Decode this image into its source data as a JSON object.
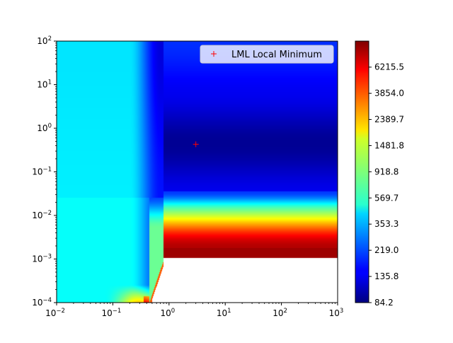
{
  "chart_data": {
    "type": "heatmap",
    "title": "",
    "xlabel": "",
    "ylabel": "",
    "x_scale": "log",
    "y_scale": "log",
    "xlim": [
      0.01,
      1000
    ],
    "ylim": [
      0.0001,
      100
    ],
    "x_ticks": [
      {
        "value": 0.01,
        "base": "10",
        "exp": "−2"
      },
      {
        "value": 0.1,
        "base": "10",
        "exp": "−1"
      },
      {
        "value": 1,
        "base": "10",
        "exp": "0"
      },
      {
        "value": 10,
        "base": "10",
        "exp": "1"
      },
      {
        "value": 100,
        "base": "10",
        "exp": "2"
      },
      {
        "value": 1000,
        "base": "10",
        "exp": "3"
      }
    ],
    "y_ticks": [
      {
        "value": 0.0001,
        "base": "10",
        "exp": "−4"
      },
      {
        "value": 0.001,
        "base": "10",
        "exp": "−3"
      },
      {
        "value": 0.01,
        "base": "10",
        "exp": "−2"
      },
      {
        "value": 0.1,
        "base": "10",
        "exp": "−1"
      },
      {
        "value": 1,
        "base": "10",
        "exp": "0"
      },
      {
        "value": 10,
        "base": "10",
        "exp": "1"
      },
      {
        "value": 100,
        "base": "10",
        "exp": "2"
      }
    ],
    "colormap": "jet",
    "color_scale": "log",
    "color_range": [
      84.2,
      10000
    ],
    "colorbar_ticks": [
      {
        "value": 84.2,
        "label": "84.2"
      },
      {
        "value": 135.8,
        "label": "135.8"
      },
      {
        "value": 219.0,
        "label": "219.0"
      },
      {
        "value": 353.3,
        "label": "353.3"
      },
      {
        "value": 569.7,
        "label": "569.7"
      },
      {
        "value": 918.8,
        "label": "918.8"
      },
      {
        "value": 1481.8,
        "label": "1481.8"
      },
      {
        "value": 2389.7,
        "label": "2389.7"
      },
      {
        "value": 3854.0,
        "label": "3854.0"
      },
      {
        "value": 6215.5,
        "label": "6215.5"
      }
    ],
    "series": [
      {
        "name": "LML Local Minimum",
        "marker": "+",
        "color": "#ff0000",
        "points": [
          {
            "x": 3.0,
            "y": 0.43
          }
        ]
      }
    ],
    "legend": {
      "position": "top-right"
    }
  }
}
